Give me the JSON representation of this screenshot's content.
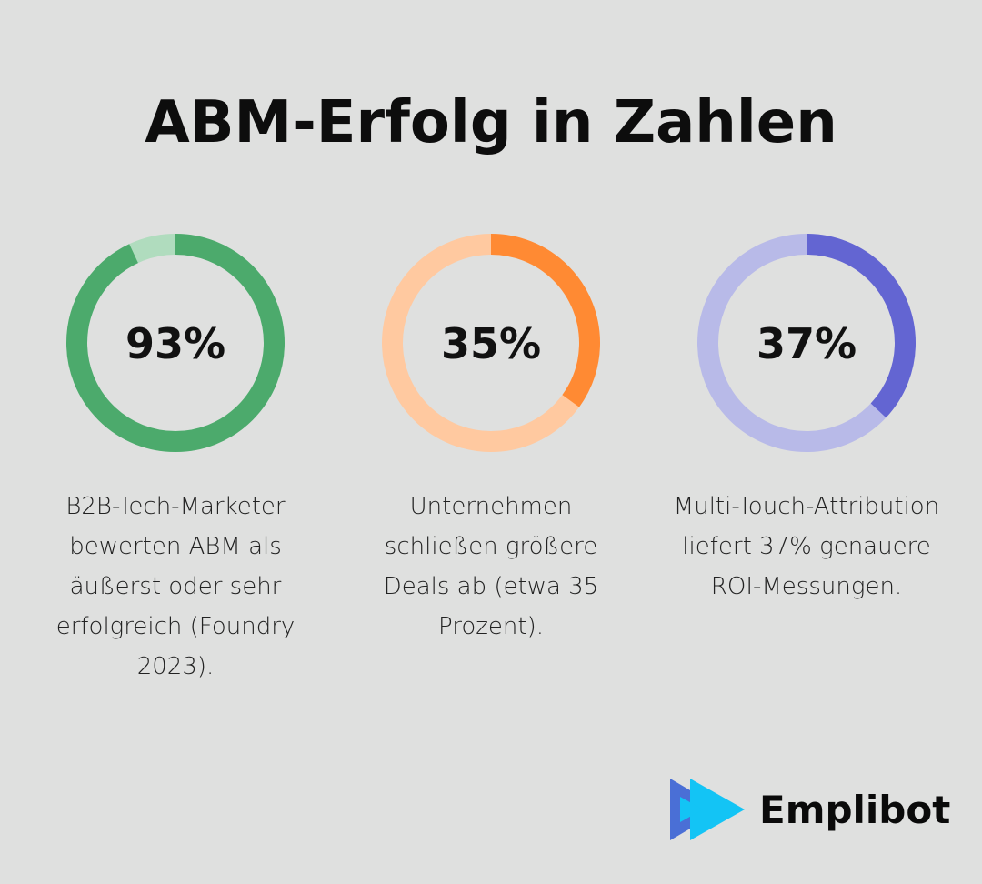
{
  "title": "ABM-Erfolg in Zahlen",
  "chart_data": [
    {
      "type": "pie",
      "variant": "donut",
      "value": 93,
      "max": 100,
      "label": "93%",
      "description": "B2B-Tech-Marketer bewerten ABM als äußerst oder sehr erfolgreich (Foundry 2023).",
      "colors": {
        "fill": "#4caa6c",
        "track": "#b0dcbe"
      }
    },
    {
      "type": "pie",
      "variant": "donut",
      "value": 35,
      "max": 100,
      "label": "35%",
      "description": "Unternehmen schließen größere Deals ab (etwa 35 Prozent).",
      "colors": {
        "fill": "#ff8a33",
        "track": "#ffc9a0"
      }
    },
    {
      "type": "pie",
      "variant": "donut",
      "value": 37,
      "max": 100,
      "label": "37%",
      "description": "Multi-Touch-Attribution liefert 37% genauere ROI-Messungen.",
      "colors": {
        "fill": "#6365d2",
        "track": "#b8bae8"
      }
    }
  ],
  "logo": {
    "text": "Emplibot",
    "colors": {
      "back": "#4a6fd6",
      "front": "#13c4f5"
    }
  }
}
